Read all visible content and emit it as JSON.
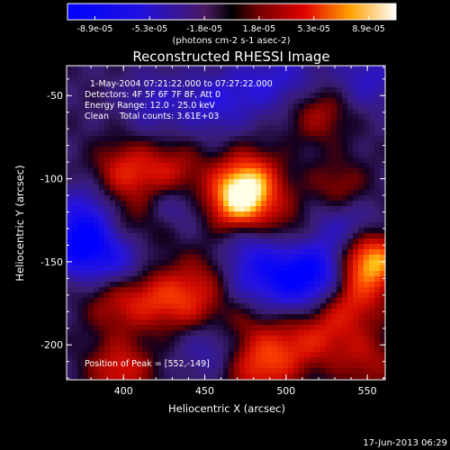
{
  "chart_data": {
    "type": "heatmap",
    "title": "Reconstructed RHESSI Image",
    "xlabel": "Heliocentric X (arcsec)",
    "ylabel": "Heliocentric Y (arcsec)",
    "xlim": [
      365,
      561
    ],
    "ylim": [
      -221,
      -32
    ],
    "xticks": [
      400,
      450,
      500,
      550
    ],
    "yticks": [
      -50,
      -100,
      -150,
      -200
    ],
    "colorbar": {
      "ticks": [
        "-8.9e-05",
        "-5.3e-05",
        "-1.8e-05",
        "1.8e-05",
        "5.3e-05",
        "8.9e-05"
      ],
      "unit_label": "(photons cm-2 s-1 asec-2)",
      "range": [
        -8.9e-05,
        8.9e-05
      ]
    },
    "annotations": [
      "1-May-2004 07:21:22.000 to 07:27:22.000",
      "Detectors: 4F 5F 6F 7F 8F, Att 0",
      "Energy Range: 12.0 - 25.0 keV",
      "Clean    Total counts: 3.61E+03",
      "Position of Peak = [552,-149]"
    ],
    "peak": {
      "x": 552,
      "y": -149
    },
    "sources": [
      {
        "x": 552,
        "y": -149,
        "level": 1.0
      },
      {
        "x": 471,
        "y": -114,
        "level": 0.92
      },
      {
        "x": 478,
        "y": -101,
        "level": 0.62
      },
      {
        "x": 430,
        "y": -98,
        "level": 0.5
      },
      {
        "x": 401,
        "y": -96,
        "level": 0.5
      },
      {
        "x": 532,
        "y": -108,
        "level": 0.38
      },
      {
        "x": 520,
        "y": -60,
        "level": 0.38
      },
      {
        "x": 418,
        "y": -170,
        "level": 0.42
      },
      {
        "x": 440,
        "y": -175,
        "level": 0.42
      },
      {
        "x": 395,
        "y": -175,
        "level": 0.35
      },
      {
        "x": 455,
        "y": -158,
        "level": 0.3
      },
      {
        "x": 540,
        "y": -175,
        "level": 0.45
      },
      {
        "x": 520,
        "y": -195,
        "level": 0.4
      },
      {
        "x": 550,
        "y": -210,
        "level": 0.35
      },
      {
        "x": 495,
        "y": -205,
        "level": 0.42
      },
      {
        "x": 480,
        "y": -215,
        "level": 0.4
      },
      {
        "x": 470,
        "y": -185,
        "level": 0.28
      },
      {
        "x": 398,
        "y": -215,
        "level": 0.5
      },
      {
        "x": 395,
        "y": -125,
        "level": 0.28
      },
      {
        "x": 505,
        "y": -130,
        "level": 0.28
      },
      {
        "x": 420,
        "y": -130,
        "level": 0.22
      },
      {
        "x": 375,
        "y": -140,
        "level": -0.85
      },
      {
        "x": 380,
        "y": -120,
        "level": -0.45
      },
      {
        "x": 520,
        "y": -155,
        "level": -0.6
      },
      {
        "x": 505,
        "y": -162,
        "level": -0.45
      },
      {
        "x": 430,
        "y": -115,
        "level": -0.4
      },
      {
        "x": 400,
        "y": -150,
        "level": -0.4
      },
      {
        "x": 475,
        "y": -140,
        "level": -0.3
      },
      {
        "x": 550,
        "y": -40,
        "level": -0.35
      },
      {
        "x": 455,
        "y": -55,
        "level": -0.35
      },
      {
        "x": 480,
        "y": -45,
        "level": -0.3
      },
      {
        "x": 505,
        "y": -40,
        "level": -0.3
      },
      {
        "x": 420,
        "y": -55,
        "level": -0.3
      },
      {
        "x": 490,
        "y": -155,
        "level": -0.35
      },
      {
        "x": 455,
        "y": -200,
        "level": -0.32
      },
      {
        "x": 470,
        "y": -165,
        "level": -0.3
      },
      {
        "x": 525,
        "y": -125,
        "level": -0.3
      },
      {
        "x": 545,
        "y": -130,
        "level": -0.3
      }
    ]
  },
  "footer": {
    "timestamp": "17-Jun-2013 06:29"
  }
}
